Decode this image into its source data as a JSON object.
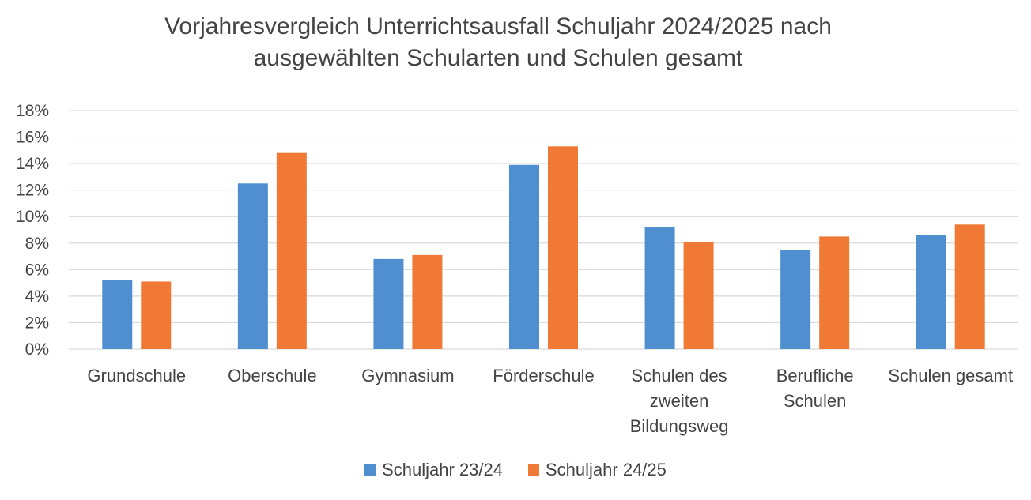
{
  "title_line1": "Vorjahresvergleich Unterrichtsausfall Schuljahr 2024/2025 nach",
  "title_line2": "ausgewählten Schularten und Schulen gesamt",
  "colors": {
    "series1": "#4f8fd0",
    "series2": "#f07a35",
    "grid": "#d9d9d9",
    "text": "#444444"
  },
  "chart_data": {
    "type": "bar",
    "title": "Vorjahresvergleich Unterrichtsausfall Schuljahr 2024/2025 nach ausgewählten Schularten und Schulen gesamt",
    "categories": [
      [
        "Grundschule"
      ],
      [
        "Oberschule"
      ],
      [
        "Gymnasium"
      ],
      [
        "Förderschule"
      ],
      [
        "Schulen des",
        "zweiten",
        "Bildungsweg"
      ],
      [
        "Berufliche",
        "Schulen"
      ],
      [
        "Schulen gesamt"
      ]
    ],
    "series": [
      {
        "name": "Schuljahr 23/24",
        "values": [
          0.052,
          0.125,
          0.068,
          0.139,
          0.092,
          0.075,
          0.086
        ]
      },
      {
        "name": "Schuljahr 24/25",
        "values": [
          0.051,
          0.148,
          0.071,
          0.153,
          0.081,
          0.085,
          0.094
        ]
      }
    ],
    "ylim": [
      0,
      0.18
    ],
    "yticks": [
      "0%",
      "2%",
      "4%",
      "6%",
      "8%",
      "10%",
      "12%",
      "14%",
      "16%",
      "18%"
    ],
    "grid": true,
    "legend_position": "bottom"
  }
}
